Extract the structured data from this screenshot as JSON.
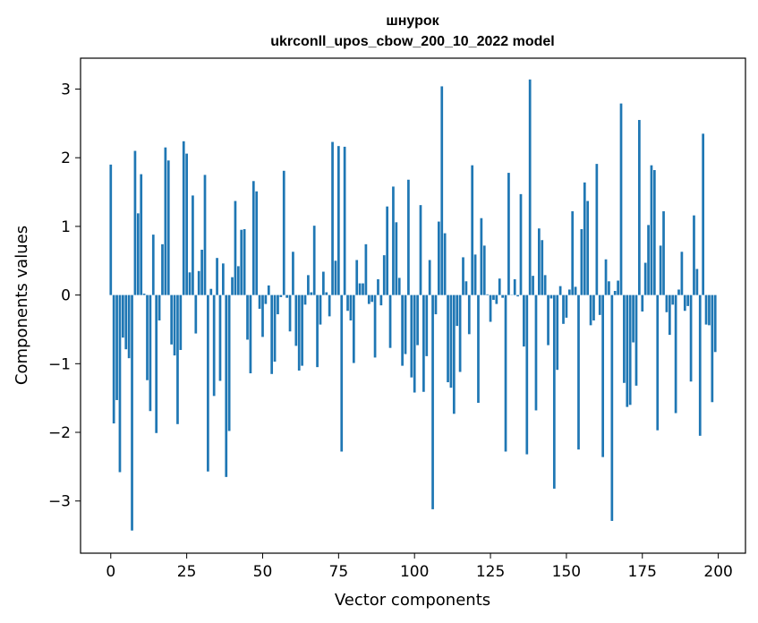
{
  "chart_data": {
    "type": "bar",
    "title": "шнурок",
    "subtitle": "ukrconll_upos_cbow_200_10_2022 model",
    "xlabel": "Vector components",
    "ylabel": "Components values",
    "xlim": [
      -9.95,
      208.95
    ],
    "ylim": [
      -3.76,
      3.45
    ],
    "xticks": [
      0,
      25,
      50,
      75,
      100,
      125,
      150,
      175,
      200
    ],
    "xtick_labels": [
      "0",
      "25",
      "50",
      "75",
      "100",
      "125",
      "150",
      "175",
      "200"
    ],
    "yticks": [
      3,
      2,
      1,
      0,
      -1,
      -2,
      -3
    ],
    "ytick_labels": [
      "3",
      "2",
      "1",
      "0",
      "−1",
      "−2",
      "−3"
    ],
    "grid": false,
    "bar_color": "#1f77b4",
    "x": [
      0,
      1,
      2,
      3,
      4,
      5,
      6,
      7,
      8,
      9,
      10,
      11,
      12,
      13,
      14,
      15,
      16,
      17,
      18,
      19,
      20,
      21,
      22,
      23,
      24,
      25,
      26,
      27,
      28,
      29,
      30,
      31,
      32,
      33,
      34,
      35,
      36,
      37,
      38,
      39,
      40,
      41,
      42,
      43,
      44,
      45,
      46,
      47,
      48,
      49,
      50,
      51,
      52,
      53,
      54,
      55,
      56,
      57,
      58,
      59,
      60,
      61,
      62,
      63,
      64,
      65,
      66,
      67,
      68,
      69,
      70,
      71,
      72,
      73,
      74,
      75,
      76,
      77,
      78,
      79,
      80,
      81,
      82,
      83,
      84,
      85,
      86,
      87,
      88,
      89,
      90,
      91,
      92,
      93,
      94,
      95,
      96,
      97,
      98,
      99,
      100,
      101,
      102,
      103,
      104,
      105,
      106,
      107,
      108,
      109,
      110,
      111,
      112,
      113,
      114,
      115,
      116,
      117,
      118,
      119,
      120,
      121,
      122,
      123,
      124,
      125,
      126,
      127,
      128,
      129,
      130,
      131,
      132,
      133,
      134,
      135,
      136,
      137,
      138,
      139,
      140,
      141,
      142,
      143,
      144,
      145,
      146,
      147,
      148,
      149,
      150,
      151,
      152,
      153,
      154,
      155,
      156,
      157,
      158,
      159,
      160,
      161,
      162,
      163,
      164,
      165,
      166,
      167,
      168,
      169,
      170,
      171,
      172,
      173,
      174,
      175,
      176,
      177,
      178,
      179,
      180,
      181,
      182,
      183,
      184,
      185,
      186,
      187,
      188,
      189,
      190,
      191,
      192,
      193,
      194,
      195,
      196,
      197,
      198,
      199
    ],
    "values": [
      1.9,
      -1.87,
      -1.53,
      -2.58,
      -0.62,
      -0.79,
      -0.92,
      -3.43,
      2.1,
      1.19,
      1.76,
      0.02,
      -1.24,
      -1.69,
      0.88,
      -2.01,
      -0.37,
      0.74,
      2.15,
      1.96,
      -0.72,
      -0.88,
      -1.88,
      -0.8,
      2.24,
      2.06,
      0.33,
      1.45,
      -0.56,
      0.35,
      0.66,
      1.75,
      -2.57,
      0.09,
      -1.47,
      0.54,
      -1.25,
      0.46,
      -2.65,
      -1.98,
      0.26,
      1.37,
      0.42,
      0.95,
      0.96,
      -0.65,
      -1.14,
      1.66,
      1.51,
      -0.2,
      -0.61,
      -0.13,
      0.14,
      -1.15,
      -0.97,
      -0.28,
      -0.03,
      1.81,
      -0.04,
      -0.53,
      0.63,
      -0.74,
      -1.1,
      -1.03,
      -0.14,
      0.29,
      0.04,
      1.01,
      -1.05,
      -0.43,
      0.34,
      0.04,
      -0.31,
      2.23,
      0.5,
      2.17,
      -2.28,
      2.16,
      -0.23,
      -0.37,
      -0.99,
      0.51,
      0.17,
      0.17,
      0.74,
      -0.13,
      -0.1,
      -0.91,
      0.23,
      -0.15,
      0.58,
      1.29,
      -0.77,
      1.58,
      1.06,
      0.25,
      -1.03,
      -0.86,
      1.68,
      -1.2,
      -1.42,
      -0.73,
      1.31,
      -1.41,
      -0.89,
      0.51,
      -3.12,
      -0.28,
      1.07,
      3.04,
      0.9,
      -1.27,
      -1.35,
      -1.73,
      -0.45,
      -1.12,
      0.55,
      0.2,
      -0.57,
      1.89,
      0.59,
      -1.57,
      1.12,
      0.72,
      0.01,
      -0.39,
      -0.07,
      -0.13,
      0.24,
      -0.04,
      -2.28,
      1.78,
      0.0,
      0.23,
      -0.02,
      1.47,
      -0.75,
      -2.32,
      3.14,
      0.28,
      -1.68,
      0.97,
      0.8,
      0.29,
      -0.73,
      -0.05,
      -2.82,
      -1.09,
      0.13,
      -0.42,
      -0.33,
      0.08,
      1.22,
      0.12,
      -2.25,
      0.96,
      1.64,
      1.37,
      -0.44,
      -0.37,
      1.91,
      -0.29,
      -2.36,
      0.52,
      0.2,
      -3.29,
      0.06,
      0.21,
      2.79,
      -1.28,
      -1.63,
      -1.6,
      -0.69,
      -1.32,
      2.55,
      -0.24,
      0.47,
      1.02,
      1.89,
      1.82,
      -1.97,
      0.72,
      1.22,
      -0.25,
      -0.58,
      -0.14,
      -1.72,
      0.08,
      0.63,
      -0.23,
      -0.16,
      -1.26,
      1.16,
      0.38,
      -2.05,
      2.35,
      -0.43,
      -0.44,
      -1.56,
      -0.83
    ]
  }
}
